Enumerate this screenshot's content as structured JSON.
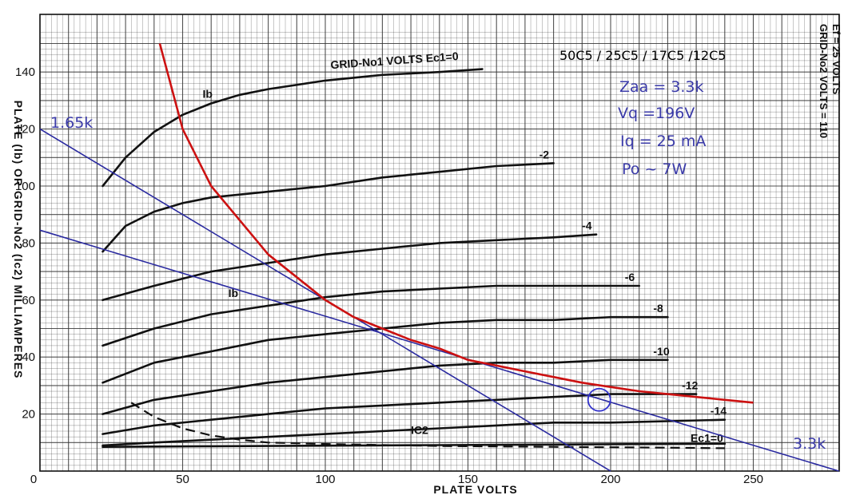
{
  "chart_data": {
    "type": "line",
    "xlabel": "PLATE VOLTS",
    "ylabel": "PLATE (Ib) OR GRID-No2 (Ic2) MILLIAMPERES",
    "xlim": [
      0,
      280
    ],
    "ylim": [
      0,
      155
    ],
    "x_ticks": [
      0,
      50,
      100,
      150,
      200,
      250
    ],
    "y_ticks": [
      20,
      40,
      60,
      80,
      100,
      120,
      140
    ],
    "grid": true,
    "conditions": [
      "Ef = 25 VOLTS",
      "GRID-No2 VOLTS = 110"
    ],
    "tube_types": "50C5 / 25C5 / 17C5 /12C5",
    "annotations": [
      "Zaa = 3.3k",
      "Vq =196V",
      "Iq = 25 mA",
      "Po ~ 7W"
    ],
    "series": [
      {
        "label": "GRID-No1 VOLTS Ec1=0",
        "points": [
          [
            22,
            100
          ],
          [
            30,
            110
          ],
          [
            40,
            119
          ],
          [
            50,
            125
          ],
          [
            60,
            129
          ],
          [
            70,
            132
          ],
          [
            80,
            134
          ],
          [
            100,
            137
          ],
          [
            120,
            139
          ],
          [
            140,
            140
          ],
          [
            155,
            141
          ]
        ]
      },
      {
        "label": "-2",
        "points": [
          [
            22,
            77
          ],
          [
            30,
            86
          ],
          [
            40,
            91
          ],
          [
            50,
            94
          ],
          [
            60,
            96
          ],
          [
            80,
            98
          ],
          [
            100,
            100
          ],
          [
            120,
            103
          ],
          [
            140,
            105
          ],
          [
            160,
            107
          ],
          [
            180,
            108
          ]
        ]
      },
      {
        "label": "-4",
        "points": [
          [
            22,
            60
          ],
          [
            40,
            65
          ],
          [
            60,
            70
          ],
          [
            80,
            73
          ],
          [
            100,
            76
          ],
          [
            120,
            78
          ],
          [
            140,
            80
          ],
          [
            160,
            81
          ],
          [
            180,
            82
          ],
          [
            195,
            83
          ]
        ]
      },
      {
        "label": "-6",
        "points": [
          [
            22,
            44
          ],
          [
            40,
            50
          ],
          [
            60,
            55
          ],
          [
            80,
            58
          ],
          [
            100,
            61
          ],
          [
            120,
            63
          ],
          [
            140,
            64
          ],
          [
            160,
            65
          ],
          [
            180,
            65
          ],
          [
            210,
            65
          ]
        ]
      },
      {
        "label": "-8",
        "points": [
          [
            22,
            31
          ],
          [
            40,
            38
          ],
          [
            60,
            42
          ],
          [
            80,
            46
          ],
          [
            100,
            48
          ],
          [
            120,
            50
          ],
          [
            140,
            52
          ],
          [
            160,
            53
          ],
          [
            180,
            53
          ],
          [
            200,
            54
          ],
          [
            220,
            54
          ]
        ]
      },
      {
        "label": "-10",
        "points": [
          [
            22,
            20
          ],
          [
            40,
            25
          ],
          [
            60,
            28
          ],
          [
            80,
            31
          ],
          [
            100,
            33
          ],
          [
            120,
            35
          ],
          [
            140,
            37
          ],
          [
            160,
            38
          ],
          [
            180,
            38
          ],
          [
            200,
            39
          ],
          [
            220,
            39
          ]
        ]
      },
      {
        "label": "-12",
        "points": [
          [
            22,
            13
          ],
          [
            40,
            16
          ],
          [
            60,
            18
          ],
          [
            80,
            20
          ],
          [
            100,
            22
          ],
          [
            120,
            23
          ],
          [
            140,
            24
          ],
          [
            160,
            25
          ],
          [
            180,
            26
          ],
          [
            200,
            27
          ],
          [
            230,
            27
          ]
        ]
      },
      {
        "label": "-14",
        "points": [
          [
            22,
            9
          ],
          [
            40,
            10
          ],
          [
            60,
            11
          ],
          [
            80,
            12
          ],
          [
            100,
            13
          ],
          [
            120,
            14
          ],
          [
            140,
            15
          ],
          [
            160,
            16
          ],
          [
            180,
            17
          ],
          [
            200,
            17
          ],
          [
            240,
            18
          ]
        ]
      },
      {
        "label": "Ec1=0",
        "points": [
          [
            22,
            8.5
          ],
          [
            60,
            8.7
          ],
          [
            100,
            8.9
          ],
          [
            140,
            9.1
          ],
          [
            180,
            9.3
          ],
          [
            220,
            9.5
          ],
          [
            240,
            9.6
          ]
        ]
      }
    ],
    "ic2_curve": {
      "label": "IC2",
      "points": [
        [
          32,
          24
        ],
        [
          40,
          19
        ],
        [
          50,
          15
        ],
        [
          60,
          12.5
        ],
        [
          70,
          11
        ],
        [
          80,
          10
        ],
        [
          100,
          9.5
        ],
        [
          140,
          8.8
        ],
        [
          180,
          8.5
        ],
        [
          220,
          8.2
        ],
        [
          240,
          8
        ]
      ]
    },
    "ib_labels": [
      "Ib",
      "Ib"
    ],
    "hyperbola": {
      "color": "#cc1111",
      "points": [
        [
          42,
          150
        ],
        [
          50,
          120
        ],
        [
          60,
          100
        ],
        [
          70,
          88
        ],
        [
          80,
          76
        ],
        [
          90,
          68
        ],
        [
          100,
          60
        ],
        [
          110,
          54
        ],
        [
          120,
          50
        ],
        [
          130,
          46
        ],
        [
          140,
          43
        ],
        [
          150,
          39
        ],
        [
          160,
          37
        ],
        [
          170,
          35
        ],
        [
          180,
          33
        ],
        [
          190,
          31
        ],
        [
          200,
          29.5
        ],
        [
          210,
          28
        ],
        [
          220,
          27
        ],
        [
          230,
          26
        ],
        [
          240,
          25
        ],
        [
          250,
          24
        ]
      ]
    },
    "load_lines": [
      {
        "label": "1.65k",
        "color": "#2a2aa0",
        "points": [
          [
            0,
            120
          ],
          [
            200,
            0
          ]
        ]
      },
      {
        "label": "3.3k",
        "color": "#2a2aa0",
        "points": [
          [
            0,
            84.5
          ],
          [
            280,
            0
          ]
        ]
      }
    ],
    "operating_point": {
      "x": 196,
      "y": 25,
      "color": "#3333cc"
    }
  }
}
